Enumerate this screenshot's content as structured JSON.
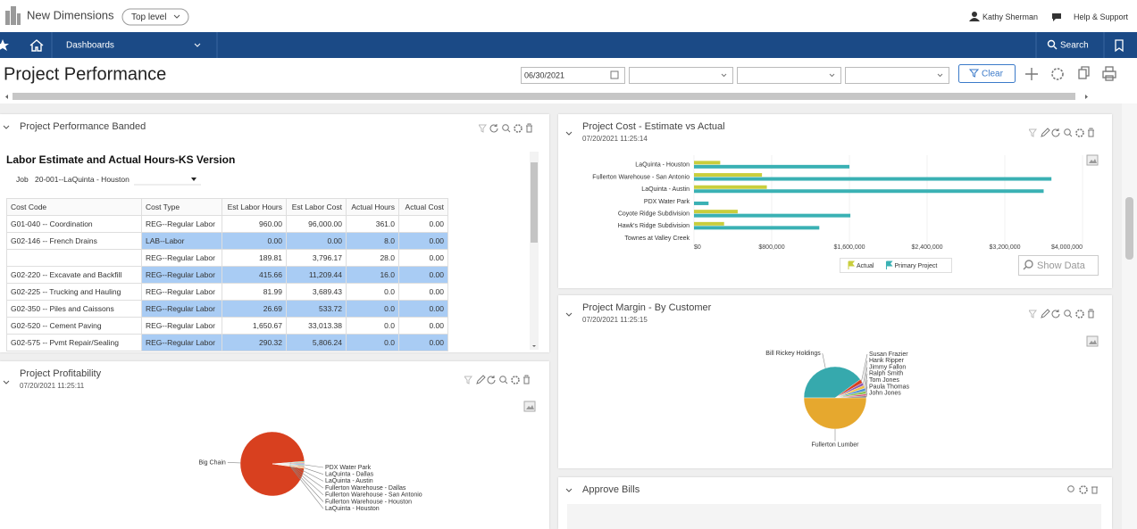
{
  "header": {
    "app_name": "New Dimensions",
    "scope": "Top level",
    "user": "Kathy Sherman",
    "help": "Help & Support"
  },
  "nav": {
    "menu": "Dashboards",
    "search": "Search"
  },
  "toolbar": {
    "title": "Project Performance",
    "date": "06/30/2021",
    "clear": "Clear"
  },
  "banded": {
    "title": "Project Performance Banded",
    "report_title": "Labor Estimate and Actual Hours-KS Version",
    "job_label": "Job",
    "job": "20-001--LaQuinta - Houston",
    "columns": [
      "Cost Code",
      "Cost Type",
      "Est Labor Hours",
      "Est Labor Cost",
      "Actual Hours",
      "Actual Cost"
    ],
    "rows": [
      [
        "G01-040 -- Coordination",
        "REG--Regular Labor",
        "960.00",
        "96,000.00",
        "361.0",
        "0.00"
      ],
      [
        "G02-146 -- French Drains",
        "LAB--Labor",
        "0.00",
        "0.00",
        "8.0",
        "0.00"
      ],
      [
        null,
        "REG--Regular Labor",
        "189.81",
        "3,796.17",
        "28.0",
        "0.00"
      ],
      [
        "G02-220 -- Excavate and Backfill",
        "REG--Regular Labor",
        "415.66",
        "11,209.44",
        "16.0",
        "0.00"
      ],
      [
        "G02-225 -- Trucking and Hauling",
        "REG--Regular Labor",
        "81.99",
        "3,689.43",
        "0.0",
        "0.00"
      ],
      [
        "G02-350 -- Piles and Caissons",
        "REG--Regular Labor",
        "26.69",
        "533.72",
        "0.0",
        "0.00"
      ],
      [
        "G02-520 -- Cement Paving",
        "REG--Regular Labor",
        "1,650.67",
        "33,013.38",
        "0.0",
        "0.00"
      ],
      [
        "G02-575 -- Pvmt Repair/Sealing",
        "REG--Regular Labor",
        "290.32",
        "5,806.24",
        "0.0",
        "0.00"
      ]
    ]
  },
  "approve_bills": {
    "title": "Approve Bills"
  },
  "chart_data": [
    {
      "type": "bar",
      "orientation": "horizontal",
      "title": "Project Cost - Estimate vs Actual",
      "subtitle": "07/20/2021 11:25:14",
      "categories": [
        "LaQuinta - Houston",
        "Fullerton Warehouse - San Antonio",
        "LaQuinta - Austin",
        "PDX Water Park",
        "Coyote Ridge Subdivision",
        "Hawk's Ridge Subdivision",
        "Townes at Valley Creek"
      ],
      "series": [
        {
          "name": "Actual",
          "color": "#c9ce3c",
          "values": [
            270000,
            700000,
            750000,
            0,
            450000,
            310000,
            0
          ]
        },
        {
          "name": "Primary Project",
          "color": "#3ab1b4",
          "values": [
            1600000,
            3680000,
            3600000,
            150000,
            1610000,
            1290000,
            0
          ]
        }
      ],
      "xlim": [
        0,
        4000000
      ],
      "xticks": [
        {
          "value": 0,
          "label": "$0"
        },
        {
          "value": 800000,
          "label": "$800,000"
        },
        {
          "value": 1600000,
          "label": "$1,600,000"
        },
        {
          "value": 2400000,
          "label": "$2,400,000"
        },
        {
          "value": 3200000,
          "label": "$3,200,000"
        },
        {
          "value": 4000000,
          "label": "$4,000,000"
        }
      ],
      "action": "Show Data"
    },
    {
      "type": "pie",
      "title": "Project Profitability",
      "subtitle": "07/20/2021 11:25:11",
      "categories": [
        "Big Chain",
        "PDX Water Park",
        "LaQuinta - Dallas",
        "LaQuinta - Austin",
        "Fullerton Warehouse - Dallas",
        "Fullerton Warehouse - San Antonio",
        "Fullerton Warehouse - Houston",
        "LaQuinta - Houston"
      ],
      "values": [
        96.5,
        0.5,
        0.5,
        0.5,
        0.5,
        0.5,
        0.5,
        0.5
      ],
      "colors": [
        "#d8401f",
        "#3ab1b4",
        "#e6a82e",
        "#8e5bb5",
        "#4c8fd6",
        "#8cc152",
        "#d94f79",
        "#f0c040"
      ]
    },
    {
      "type": "pie",
      "title": "Project Margin - By Customer",
      "subtitle": "07/20/2021 11:25:15",
      "categories": [
        "Bill Rickey Holdings",
        "Susan Frazier",
        "Hank Ripper",
        "Jimmy Fallon",
        "Ralph Smith",
        "Tom Jones",
        "Paula Thomas",
        "John Jones",
        "Fullerton Lumber"
      ],
      "values": [
        40,
        2,
        1.5,
        1.5,
        1.5,
        1.5,
        1,
        1,
        50
      ],
      "colors": [
        "#36a9ad",
        "#d8401f",
        "#8e5bb5",
        "#f0c040",
        "#4c8fd6",
        "#8cc152",
        "#d94f79",
        "#7a7a7a",
        "#e6a82e"
      ]
    }
  ]
}
